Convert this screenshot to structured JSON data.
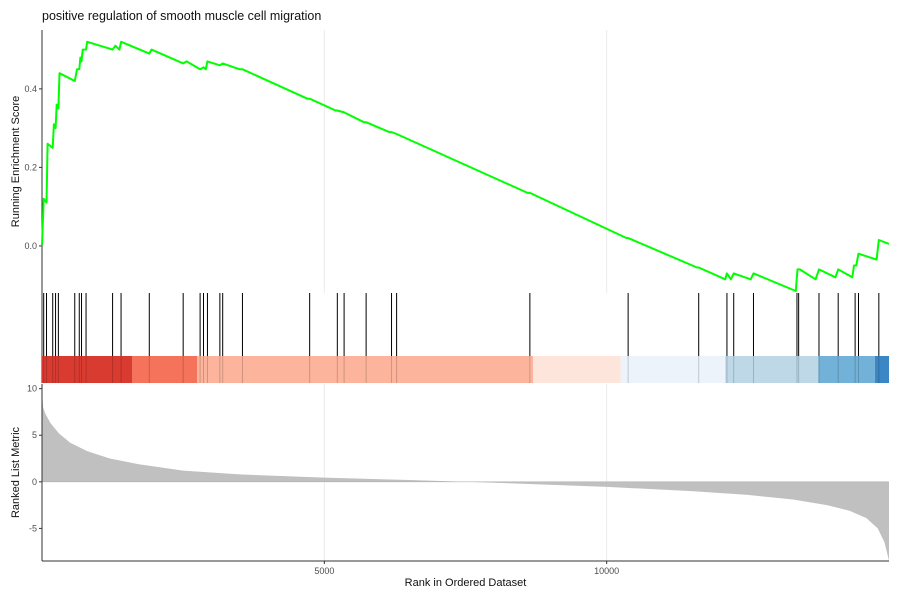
{
  "chart_data": {
    "type": "line",
    "title": "positive regulation of smooth muscle cell migration",
    "xlabel": "Rank in Ordered Dataset",
    "xlim": [
      0,
      15000
    ],
    "x_ticks": [
      5000,
      10000
    ],
    "grid": true,
    "legend": "none",
    "panels": {
      "running_score": {
        "ylabel": "Running Enrichment Score",
        "ylim": [
          -0.12,
          0.55
        ],
        "y_ticks": [
          0.0,
          0.2,
          0.4
        ],
        "color": "#00ff00",
        "points": [
          [
            0,
            0.0
          ],
          [
            30,
            0.12
          ],
          [
            80,
            0.11
          ],
          [
            100,
            0.26
          ],
          [
            190,
            0.25
          ],
          [
            210,
            0.31
          ],
          [
            240,
            0.3
          ],
          [
            260,
            0.36
          ],
          [
            290,
            0.35
          ],
          [
            310,
            0.44
          ],
          [
            580,
            0.42
          ],
          [
            620,
            0.45
          ],
          [
            660,
            0.45
          ],
          [
            680,
            0.48
          ],
          [
            700,
            0.47
          ],
          [
            720,
            0.5
          ],
          [
            780,
            0.5
          ],
          [
            800,
            0.52
          ],
          [
            1250,
            0.5
          ],
          [
            1300,
            0.51
          ],
          [
            1370,
            0.5
          ],
          [
            1400,
            0.52
          ],
          [
            1900,
            0.49
          ],
          [
            1940,
            0.5
          ],
          [
            2500,
            0.465
          ],
          [
            2560,
            0.47
          ],
          [
            2800,
            0.45
          ],
          [
            2860,
            0.455
          ],
          [
            2900,
            0.45
          ],
          [
            2930,
            0.47
          ],
          [
            3150,
            0.46
          ],
          [
            3200,
            0.465
          ],
          [
            3500,
            0.45
          ],
          [
            3550,
            0.45
          ],
          [
            4700,
            0.375
          ],
          [
            4740,
            0.375
          ],
          [
            5200,
            0.345
          ],
          [
            5230,
            0.345
          ],
          [
            5350,
            0.34
          ],
          [
            5700,
            0.315
          ],
          [
            5740,
            0.315
          ],
          [
            6150,
            0.29
          ],
          [
            6190,
            0.29
          ],
          [
            6280,
            0.285
          ],
          [
            8600,
            0.135
          ],
          [
            8640,
            0.135
          ],
          [
            10350,
            0.02
          ],
          [
            10380,
            0.02
          ],
          [
            11600,
            -0.055
          ],
          [
            11630,
            -0.055
          ],
          [
            12100,
            -0.085
          ],
          [
            12130,
            -0.07
          ],
          [
            12200,
            -0.085
          ],
          [
            12250,
            -0.07
          ],
          [
            12550,
            -0.085
          ],
          [
            12600,
            -0.07
          ],
          [
            13350,
            -0.115
          ],
          [
            13380,
            -0.06
          ],
          [
            13420,
            -0.06
          ],
          [
            13700,
            -0.085
          ],
          [
            13760,
            -0.06
          ],
          [
            14050,
            -0.08
          ],
          [
            14100,
            -0.06
          ],
          [
            14350,
            -0.08
          ],
          [
            14380,
            -0.05
          ],
          [
            14420,
            -0.05
          ],
          [
            14460,
            -0.02
          ],
          [
            14780,
            -0.035
          ],
          [
            14820,
            0.015
          ],
          [
            15000,
            0.005
          ]
        ]
      },
      "gene_hits": [
        30,
        80,
        190,
        240,
        290,
        580,
        660,
        700,
        780,
        1250,
        1400,
        1900,
        2500,
        2800,
        2860,
        2930,
        3150,
        3200,
        3550,
        4740,
        5230,
        5350,
        5740,
        6190,
        6280,
        8640,
        10380,
        11630,
        12130,
        12250,
        12600,
        13370,
        13400,
        13760,
        14100,
        14400,
        14460,
        14820
      ],
      "color_bands": [
        {
          "from": 0,
          "to": 1600,
          "color": "#d93b30"
        },
        {
          "from": 1600,
          "to": 2750,
          "color": "#f4735a"
        },
        {
          "from": 2750,
          "to": 8700,
          "color": "#fcb49c"
        },
        {
          "from": 8700,
          "to": 10250,
          "color": "#fde5db"
        },
        {
          "from": 10250,
          "to": 12100,
          "color": "#edf3fb"
        },
        {
          "from": 12100,
          "to": 13750,
          "color": "#bed8e8"
        },
        {
          "from": 13750,
          "to": 14750,
          "color": "#72b1d8"
        },
        {
          "from": 14750,
          "to": 15000,
          "color": "#3b86c4"
        }
      ],
      "ranked_list_metric": {
        "ylabel": "Ranked List Metric",
        "ylim": [
          -8.5,
          10.5
        ],
        "y_ticks": [
          -5,
          0,
          5,
          10
        ],
        "fill": "#c0c0c0",
        "points": [
          [
            0,
            9.9
          ],
          [
            20,
            8.0
          ],
          [
            60,
            7.3
          ],
          [
            150,
            6.3
          ],
          [
            300,
            5.2
          ],
          [
            500,
            4.2
          ],
          [
            800,
            3.3
          ],
          [
            1200,
            2.5
          ],
          [
            1700,
            1.9
          ],
          [
            2500,
            1.2
          ],
          [
            3500,
            0.8
          ],
          [
            5000,
            0.45
          ],
          [
            6500,
            0.2
          ],
          [
            7500,
            0.0
          ],
          [
            8500,
            -0.2
          ],
          [
            10000,
            -0.55
          ],
          [
            11500,
            -1.0
          ],
          [
            12500,
            -1.4
          ],
          [
            13300,
            -1.9
          ],
          [
            13900,
            -2.5
          ],
          [
            14300,
            -3.1
          ],
          [
            14600,
            -3.9
          ],
          [
            14800,
            -5.0
          ],
          [
            14920,
            -6.5
          ],
          [
            14980,
            -8.0
          ],
          [
            15000,
            -8.5
          ]
        ]
      }
    }
  }
}
